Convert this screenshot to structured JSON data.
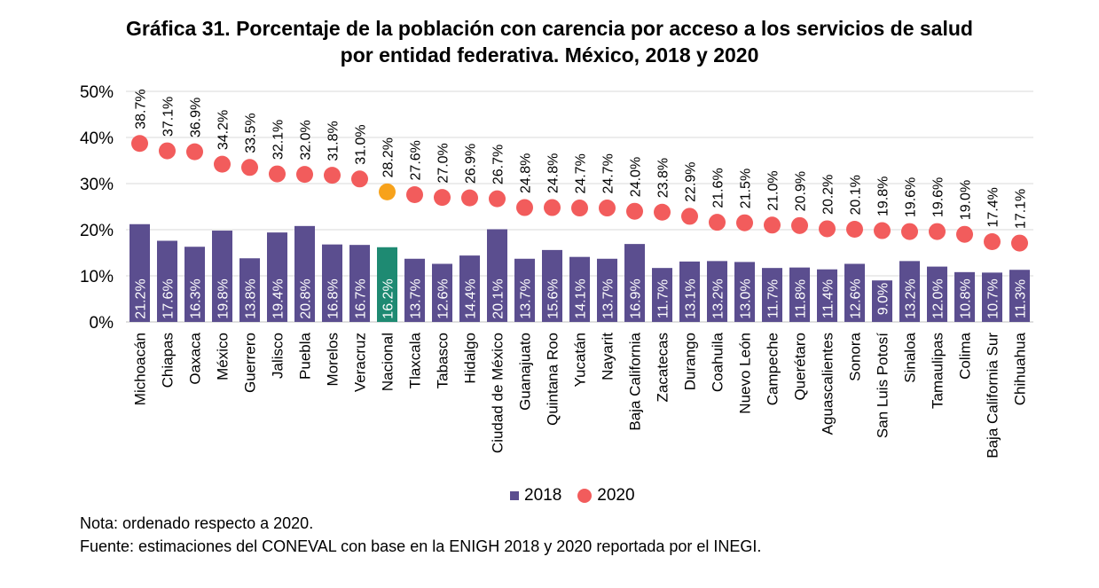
{
  "figure": {
    "title_line1": "Gráfica 31. Porcentaje de la población con carencia por acceso a los servicios de salud",
    "title_line2": "por entidad federativa. México, 2018 y 2020",
    "note": "Nota: ordenado respecto a 2020.",
    "source": "Fuente: estimaciones del CONEVAL con base en la ENIGH 2018 y 2020 reportada por el INEGI."
  },
  "colors": {
    "bar": "#5B4E8F",
    "bar_highlight": "#1E8A72",
    "dot": "#F25C5C",
    "dot_highlight": "#F7A21B",
    "grid": "#D9D9D9"
  },
  "chart_data": {
    "type": "bar",
    "title": "Gráfica 31. Porcentaje de la población con carencia por acceso a los servicios de salud por entidad federativa. México, 2018 y 2020",
    "xlabel": "",
    "ylabel": "",
    "ylim": [
      0,
      50
    ],
    "yticks": [
      0,
      10,
      20,
      30,
      40,
      50
    ],
    "ytick_labels": [
      "0%",
      "10%",
      "20%",
      "30%",
      "40%",
      "50%"
    ],
    "grid": true,
    "legend_position": "bottom",
    "highlight_category": "Nacional",
    "categories": [
      "Michoacán",
      "Chiapas",
      "Oaxaca",
      "México",
      "Guerrero",
      "Jalisco",
      "Puebla",
      "Morelos",
      "Veracruz",
      "Nacional",
      "Tlaxcala",
      "Tabasco",
      "Hidalgo",
      "Ciudad de México",
      "Guanajuato",
      "Quintana Roo",
      "Yucatán",
      "Nayarit",
      "Baja California",
      "Zacatecas",
      "Durango",
      "Coahuila",
      "Nuevo León",
      "Campeche",
      "Querétaro",
      "Aguascalientes",
      "Sonora",
      "San Luis Potosí",
      "Sinaloa",
      "Tamaulipas",
      "Colima",
      "Baja California Sur",
      "Chihuahua"
    ],
    "series": [
      {
        "name": "2018",
        "type": "bar",
        "values": [
          21.2,
          17.6,
          16.3,
          19.8,
          13.8,
          19.4,
          20.8,
          16.8,
          16.7,
          16.2,
          13.7,
          12.6,
          14.4,
          20.1,
          13.7,
          15.6,
          14.1,
          13.7,
          16.9,
          11.7,
          13.1,
          13.2,
          13.0,
          11.7,
          11.8,
          11.4,
          12.6,
          9.0,
          13.2,
          12.0,
          10.8,
          10.7,
          11.3
        ],
        "labels": [
          "21.2%",
          "17.6%",
          "16.3%",
          "19.8%",
          "13.8%",
          "19.4%",
          "20.8%",
          "16.8%",
          "16.7%",
          "16.2%",
          "13.7%",
          "12.6%",
          "14.4%",
          "20.1%",
          "13.7%",
          "15.6%",
          "14.1%",
          "13.7%",
          "16.9%",
          "11.7%",
          "13.1%",
          "13.2%",
          "13.0%",
          "11.7%",
          "11.8%",
          "11.4%",
          "12.6%",
          "9.0%",
          "13.2%",
          "12.0%",
          "10.8%",
          "10.7%",
          "11.3%"
        ]
      },
      {
        "name": "2020",
        "type": "scatter",
        "values": [
          38.7,
          37.1,
          36.9,
          34.2,
          33.5,
          32.1,
          32.0,
          31.8,
          31.0,
          28.2,
          27.6,
          27.0,
          26.9,
          26.7,
          24.8,
          24.8,
          24.7,
          24.7,
          24.0,
          23.8,
          22.9,
          21.6,
          21.5,
          21.0,
          20.9,
          20.2,
          20.1,
          19.8,
          19.6,
          19.6,
          19.0,
          17.4,
          17.1
        ],
        "labels": [
          "38.7%",
          "37.1%",
          "36.9%",
          "34.2%",
          "33.5%",
          "32.1%",
          "32.0%",
          "31.8%",
          "31.0%",
          "28.2%",
          "27.6%",
          "27.0%",
          "26.9%",
          "26.7%",
          "24.8%",
          "24.8%",
          "24.7%",
          "24.7%",
          "24.0%",
          "23.8%",
          "22.9%",
          "21.6%",
          "21.5%",
          "21.0%",
          "20.9%",
          "20.2%",
          "20.1%",
          "19.8%",
          "19.6%",
          "19.6%",
          "19.0%",
          "17.4%",
          "17.1%"
        ]
      }
    ]
  }
}
